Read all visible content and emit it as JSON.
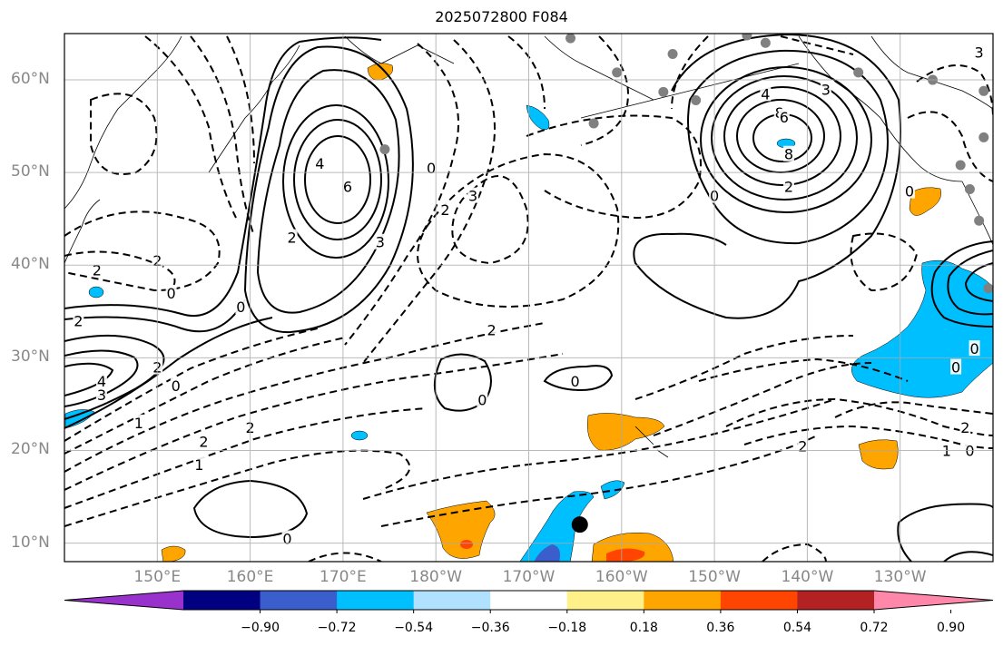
{
  "title": "2025072800 F084",
  "map": {
    "extent": {
      "lon_min": 140,
      "lon_max": 240,
      "lat_min": 8,
      "lat_max": 65
    },
    "lat_ticks": [
      {
        "lat": 60,
        "label": "60°N"
      },
      {
        "lat": 50,
        "label": "50°N"
      },
      {
        "lat": 40,
        "label": "40°N"
      },
      {
        "lat": 30,
        "label": "30°N"
      },
      {
        "lat": 20,
        "label": "20°N"
      },
      {
        "lat": 10,
        "label": "10°N"
      }
    ],
    "lon_ticks": [
      {
        "lon": 150,
        "label": "150°E"
      },
      {
        "lon": 160,
        "label": "160°E"
      },
      {
        "lon": 170,
        "label": "170°E"
      },
      {
        "lon": 180,
        "label": "180°W"
      },
      {
        "lon": 190,
        "label": "170°W"
      },
      {
        "lon": 200,
        "label": "160°W"
      },
      {
        "lon": 210,
        "label": "150°W"
      },
      {
        "lon": 220,
        "label": "140°W"
      },
      {
        "lon": 230,
        "label": "130°W"
      }
    ],
    "gridlines": true,
    "contour_labels": [
      {
        "text": "4",
        "lon": 167.5,
        "lat": 51
      },
      {
        "text": "6",
        "lon": 170.5,
        "lat": 48.5
      },
      {
        "text": "2",
        "lon": 164.5,
        "lat": 43
      },
      {
        "text": "3",
        "lon": 174,
        "lat": 42.5
      },
      {
        "text": "0",
        "lon": 179.5,
        "lat": 50.5
      },
      {
        "text": "2",
        "lon": 181,
        "lat": 46
      },
      {
        "text": "3",
        "lon": 184,
        "lat": 47.5
      },
      {
        "text": "0",
        "lon": 159,
        "lat": 35.5
      },
      {
        "text": "0",
        "lon": 151.5,
        "lat": 37
      },
      {
        "text": "2",
        "lon": 150,
        "lat": 40.5
      },
      {
        "text": "2",
        "lon": 143.5,
        "lat": 39.5
      },
      {
        "text": "2",
        "lon": 141.5,
        "lat": 34
      },
      {
        "text": "4",
        "lon": 144,
        "lat": 27.5
      },
      {
        "text": "3",
        "lon": 144,
        "lat": 26
      },
      {
        "text": "2",
        "lon": 150,
        "lat": 29
      },
      {
        "text": "0",
        "lon": 152,
        "lat": 27
      },
      {
        "text": "1",
        "lon": 148,
        "lat": 23
      },
      {
        "text": "2",
        "lon": 160,
        "lat": 22.5
      },
      {
        "text": "2",
        "lon": 155,
        "lat": 21
      },
      {
        "text": "1",
        "lon": 154.5,
        "lat": 18.5
      },
      {
        "text": "2",
        "lon": 186,
        "lat": 33
      },
      {
        "text": "0",
        "lon": 185,
        "lat": 25.5
      },
      {
        "text": "0",
        "lon": 195,
        "lat": 27.5
      },
      {
        "text": "0",
        "lon": 164,
        "lat": 10.5
      },
      {
        "text": "8",
        "lon": 217,
        "lat": 56.5
      },
      {
        "text": "4",
        "lon": 215.5,
        "lat": 58.5
      },
      {
        "text": "6",
        "lon": 217.5,
        "lat": 56
      },
      {
        "text": "8",
        "lon": 218,
        "lat": 52
      },
      {
        "text": "3",
        "lon": 222,
        "lat": 59
      },
      {
        "text": "2",
        "lon": 218,
        "lat": 48.5
      },
      {
        "text": "0",
        "lon": 210,
        "lat": 47.5
      },
      {
        "text": "0",
        "lon": 231,
        "lat": 48
      },
      {
        "text": "3",
        "lon": 238.5,
        "lat": 63
      },
      {
        "text": "3",
        "lon": 241,
        "lat": 38
      },
      {
        "text": "0",
        "lon": 238,
        "lat": 31
      },
      {
        "text": "0",
        "lon": 236,
        "lat": 29
      },
      {
        "text": "2",
        "lon": 237,
        "lat": 22.5
      },
      {
        "text": "1",
        "lon": 235,
        "lat": 20
      },
      {
        "text": "0",
        "lon": 237.5,
        "lat": 20
      },
      {
        "text": "2",
        "lon": 219.5,
        "lat": 20.5
      }
    ],
    "observation_dots": [
      {
        "lon": 194.5,
        "lat": 64.5
      },
      {
        "lon": 205.5,
        "lat": 62.8
      },
      {
        "lon": 213.5,
        "lat": 64.8
      },
      {
        "lon": 215.5,
        "lat": 64.0
      },
      {
        "lon": 199.5,
        "lat": 60.8
      },
      {
        "lon": 197.0,
        "lat": 55.3
      },
      {
        "lon": 204.5,
        "lat": 58.7
      },
      {
        "lon": 208.0,
        "lat": 57.8
      },
      {
        "lon": 225.5,
        "lat": 60.8
      },
      {
        "lon": 233.5,
        "lat": 60.0
      },
      {
        "lon": 239.0,
        "lat": 58.8
      },
      {
        "lon": 239.0,
        "lat": 53.8
      },
      {
        "lon": 236.5,
        "lat": 50.8
      },
      {
        "lon": 237.5,
        "lat": 48.2
      },
      {
        "lon": 238.5,
        "lat": 44.8
      },
      {
        "lon": 239.5,
        "lat": 37.5
      },
      {
        "lon": 174.5,
        "lat": 52.5
      }
    ],
    "center_marker": {
      "lon": 195.5,
      "lat": 12
    },
    "colors": {
      "positive_fill": "#ffa500",
      "positive_core": "#ff4500",
      "negative_fill": "#00bfff",
      "negative_core": "#3a5fcd"
    }
  },
  "colorbar": {
    "colors": [
      "#9932cc",
      "#000080",
      "#3a5fcd",
      "#00bfff",
      "#b0e2ff",
      "#ffffff",
      "#fff08a",
      "#ffa500",
      "#ff4500",
      "#b22222",
      "#ff88aa"
    ],
    "ticks": [
      -0.9,
      -0.72,
      -0.54,
      -0.36,
      -0.18,
      0.18,
      0.36,
      0.54,
      0.72,
      0.9
    ],
    "tick_labels": [
      "−0.90",
      "−0.72",
      "−0.54",
      "−0.36",
      "−0.18",
      "0.18",
      "0.36",
      "0.54",
      "0.72",
      "0.90"
    ]
  }
}
